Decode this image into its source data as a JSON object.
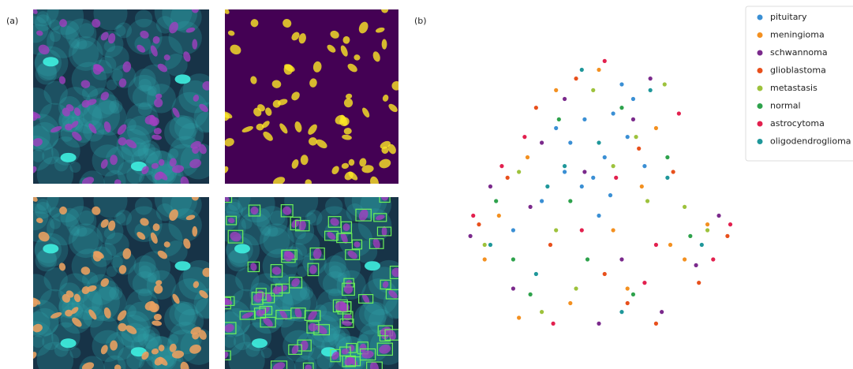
{
  "panel_labels": {
    "a": "(a)",
    "b": "(b)"
  },
  "chart_data": {
    "type": "scatter",
    "legend": "upper right",
    "xlim": [
      0,
      100
    ],
    "ylim": [
      0,
      100
    ],
    "series": [
      {
        "name": "pituitary",
        "color": "#3a8fd4",
        "x": [
          40,
          45,
          52,
          55,
          60,
          48,
          38,
          62,
          30,
          50,
          58,
          44,
          35,
          66,
          20,
          54
        ],
        "values": [
          70,
          78,
          65,
          80,
          72,
          58,
          60,
          85,
          50,
          45,
          90,
          55,
          75,
          62,
          40,
          52
        ]
      },
      {
        "name": "meningioma",
        "color": "#f39020",
        "x": [
          15,
          25,
          60,
          75,
          35,
          88,
          50,
          10,
          70,
          40,
          65,
          22,
          55,
          80
        ],
        "values": [
          45,
          65,
          20,
          35,
          88,
          42,
          95,
          30,
          75,
          15,
          55,
          10,
          40,
          30
        ]
      },
      {
        "name": "schwannoma",
        "color": "#7b2a8c",
        "x": [
          5,
          30,
          68,
          92,
          45,
          20,
          72,
          58,
          12,
          38,
          84,
          50,
          26,
          62
        ],
        "values": [
          38,
          70,
          92,
          45,
          60,
          20,
          12,
          30,
          55,
          85,
          28,
          8,
          48,
          78
        ]
      },
      {
        "name": "glioblastoma",
        "color": "#e8501c",
        "x": [
          8,
          42,
          76,
          95,
          18,
          60,
          33,
          70,
          52,
          85,
          28,
          64
        ],
        "values": [
          42,
          92,
          60,
          38,
          58,
          15,
          35,
          8,
          25,
          22,
          82,
          68
        ]
      },
      {
        "name": "metastasis",
        "color": "#9dc23c",
        "x": [
          22,
          48,
          63,
          80,
          35,
          10,
          55,
          73,
          42,
          88,
          30,
          67
        ],
        "values": [
          60,
          88,
          72,
          48,
          40,
          35,
          62,
          90,
          20,
          40,
          12,
          50
        ]
      },
      {
        "name": "normal",
        "color": "#2ea24c",
        "x": [
          14,
          36,
          58,
          74,
          46,
          26,
          82,
          62,
          40,
          20
        ],
        "values": [
          50,
          78,
          82,
          65,
          30,
          18,
          38,
          18,
          50,
          30
        ]
      },
      {
        "name": "astrocytoma",
        "color": "#e2204e",
        "x": [
          6,
          24,
          52,
          78,
          90,
          44,
          66,
          34,
          16,
          70,
          56,
          96
        ],
        "values": [
          45,
          72,
          98,
          80,
          30,
          40,
          22,
          8,
          62,
          35,
          58,
          42
        ]
      },
      {
        "name": "oligodendroglioma",
        "color": "#1f979a",
        "x": [
          12,
          32,
          50,
          68,
          86,
          58,
          28,
          44,
          74,
          38
        ],
        "values": [
          35,
          55,
          70,
          88,
          35,
          12,
          25,
          95,
          58,
          62
        ]
      }
    ]
  }
}
